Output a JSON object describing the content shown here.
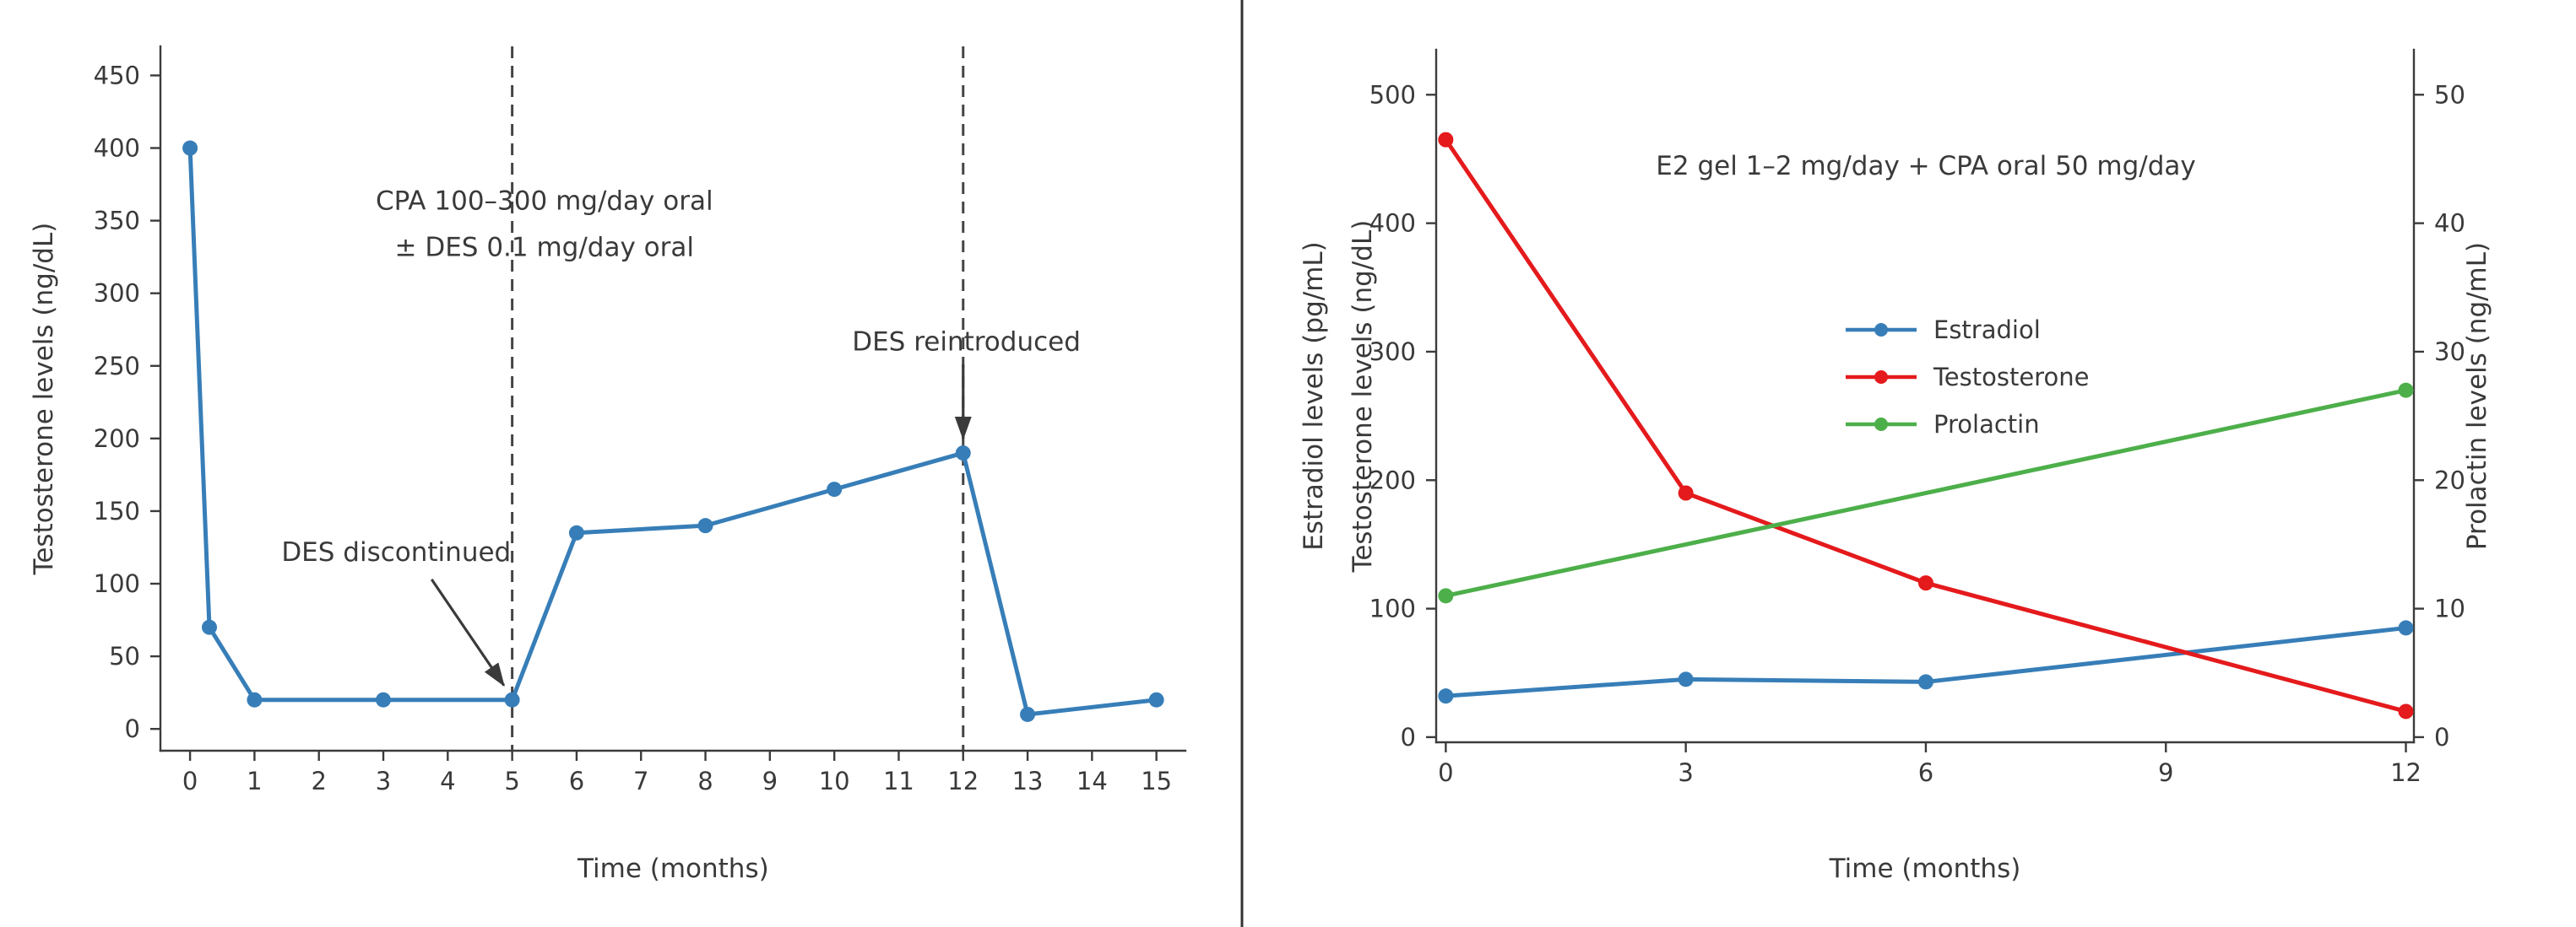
{
  "colors": {
    "blue": "#377eb8",
    "red": "#e41a1c",
    "green": "#4daf4a",
    "text": "#3a3a3a",
    "spine": "#3b3b3b",
    "dashed": "#444444",
    "divider": "#333333",
    "background": "#ffffff"
  },
  "chart_data": [
    {
      "type": "line",
      "title": "",
      "xlabel": "Time (months)",
      "ylabel": "Testosterone levels (ng/dL)",
      "xlim": [
        -0.46,
        15.45
      ],
      "ylim": [
        -15,
        470
      ],
      "xticks": [
        0,
        1,
        2,
        3,
        4,
        5,
        6,
        7,
        8,
        9,
        10,
        11,
        12,
        13,
        14,
        15
      ],
      "yticks": [
        0,
        50,
        100,
        150,
        200,
        250,
        300,
        350,
        400,
        450
      ],
      "grid": false,
      "legend_position": "none",
      "series": [
        {
          "name": "Testosterone",
          "color": "#377eb8",
          "x": [
            0,
            0.3,
            1,
            3,
            5,
            6,
            8,
            10,
            12,
            13,
            15
          ],
          "y": [
            400,
            70,
            20,
            20,
            20,
            135,
            140,
            165,
            190,
            10,
            20
          ]
        }
      ],
      "vlines": [
        5,
        12
      ],
      "annotations": [
        {
          "lines": [
            "CPA 100–300 mg/day oral",
            "± DES 0.1 mg/day oral"
          ],
          "x": 5.5,
          "y": 364
        },
        {
          "lines": [
            "DES discontinued"
          ],
          "x": 3.2,
          "y": 122,
          "arrow": {
            "from": [
              3.75,
              103
            ],
            "to": [
              4.87,
              30
            ]
          }
        },
        {
          "lines": [
            "DES reintroduced"
          ],
          "x": 12.05,
          "y": 267,
          "arrow": {
            "from": [
              12,
              251
            ],
            "to": [
              12,
              200
            ]
          }
        }
      ]
    },
    {
      "type": "line",
      "title": "E2 gel 1–2 mg/day + CPA oral 50 mg/day",
      "xlabel": "Time (months)",
      "ylabel_left": [
        "Estradiol levels (pg/mL)",
        "Testosterone levels (ng/dL)"
      ],
      "ylabel_right": "Prolactin levels (ng/mL)",
      "xlim": [
        -0.12,
        12.1
      ],
      "ylim_left": [
        -4,
        535
      ],
      "ylim_right": [
        -0.4,
        53.5
      ],
      "xticks": [
        0,
        3,
        6,
        9,
        12
      ],
      "yticks_left": [
        0,
        100,
        200,
        300,
        400,
        500
      ],
      "yticks_right": [
        0,
        10,
        20,
        30,
        40,
        50
      ],
      "grid": false,
      "legend_position": "upper-center",
      "series": [
        {
          "name": "Estradiol",
          "color": "#377eb8",
          "axis": "left",
          "x": [
            0,
            3,
            6,
            12
          ],
          "y": [
            32,
            45,
            43,
            85
          ]
        },
        {
          "name": "Testosterone",
          "color": "#e41a1c",
          "axis": "left",
          "x": [
            0,
            3,
            6,
            12
          ],
          "y": [
            465,
            190,
            120,
            20
          ]
        },
        {
          "name": "Prolactin",
          "color": "#4daf4a",
          "axis": "right",
          "x": [
            0,
            12
          ],
          "y": [
            11,
            27
          ]
        }
      ]
    }
  ]
}
